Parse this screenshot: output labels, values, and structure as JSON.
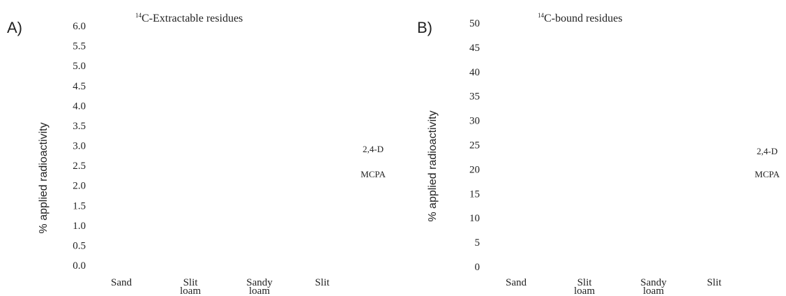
{
  "chart_data": [
    {
      "panel_label": "A)",
      "type": "bar",
      "title_superscript": "14",
      "title": "C-Extractable residues",
      "ylabel": "% applied radioactivity",
      "ylim": [
        0,
        6.0
      ],
      "yticks": [
        "0.0",
        "0.5",
        "1.0",
        "1.5",
        "2.0",
        "2.5",
        "3.0",
        "3.5",
        "4.0",
        "4.5",
        "5.0",
        "5.5",
        "6.0"
      ],
      "categories": [
        [
          "Sand"
        ],
        [
          "Slit",
          "loam"
        ],
        [
          "Sandy",
          "loam"
        ],
        [
          "Slit"
        ]
      ],
      "legend": [
        "2,4-D",
        "MCPA"
      ]
    },
    {
      "panel_label": "B)",
      "type": "bar",
      "title_superscript": "14",
      "title": "C-bound residues",
      "ylabel": "% applied radioactivity",
      "ylim": [
        0,
        50
      ],
      "yticks": [
        "0",
        "5",
        "10",
        "15",
        "20",
        "25",
        "30",
        "35",
        "40",
        "45",
        "50"
      ],
      "categories": [
        [
          "Sand"
        ],
        [
          "Slit",
          "loam"
        ],
        [
          "Sandy",
          "loam"
        ],
        [
          "Slit"
        ]
      ],
      "legend": [
        "2,4-D",
        "MCPA"
      ]
    }
  ]
}
